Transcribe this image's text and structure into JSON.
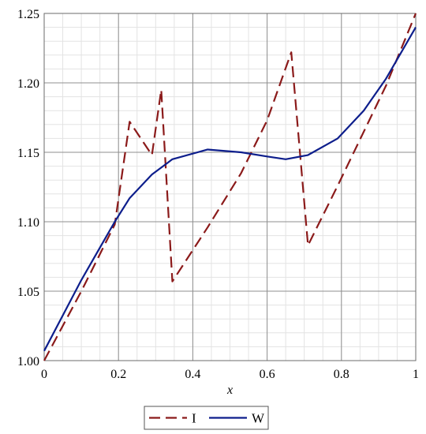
{
  "chart_data": {
    "type": "line",
    "title": "",
    "xlabel": "x",
    "ylabel": "",
    "xlim": [
      0,
      1
    ],
    "ylim": [
      1.0,
      1.25
    ],
    "x_ticks": [
      {
        "value": 0,
        "label": "0"
      },
      {
        "value": 0.2,
        "label": "0.2"
      },
      {
        "value": 0.4,
        "label": "0.4"
      },
      {
        "value": 0.6,
        "label": "0.6"
      },
      {
        "value": 0.8,
        "label": "0.8"
      },
      {
        "value": 1,
        "label": "1"
      }
    ],
    "y_ticks": [
      {
        "value": 1.0,
        "label": "1.00"
      },
      {
        "value": 1.05,
        "label": "1.05"
      },
      {
        "value": 1.1,
        "label": "1.10"
      },
      {
        "value": 1.15,
        "label": "1.15"
      },
      {
        "value": 1.2,
        "label": "1.20"
      },
      {
        "value": 1.25,
        "label": "1.25"
      }
    ],
    "minor_x_step": 0.05,
    "minor_y_step": 0.01,
    "grid": true,
    "legend_position": "bottom-center",
    "series": [
      {
        "name": "I",
        "color": "#8b1a1a",
        "dash": "dashed",
        "points": [
          [
            0,
            1.0
          ],
          [
            0.1,
            1.05
          ],
          [
            0.19,
            1.098
          ],
          [
            0.23,
            1.172
          ],
          [
            0.29,
            1.148
          ],
          [
            0.315,
            1.195
          ],
          [
            0.345,
            1.057
          ],
          [
            0.44,
            1.096
          ],
          [
            0.53,
            1.135
          ],
          [
            0.6,
            1.173
          ],
          [
            0.665,
            1.222
          ],
          [
            0.71,
            1.083
          ],
          [
            0.79,
            1.126
          ],
          [
            0.92,
            1.198
          ],
          [
            1.0,
            1.25
          ]
        ]
      },
      {
        "name": "W",
        "color": "#0d1e8c",
        "dash": "solid",
        "points": [
          [
            0,
            1.007
          ],
          [
            0.1,
            1.058
          ],
          [
            0.19,
            1.1
          ],
          [
            0.23,
            1.117
          ],
          [
            0.29,
            1.134
          ],
          [
            0.33,
            1.142
          ],
          [
            0.345,
            1.145
          ],
          [
            0.44,
            1.152
          ],
          [
            0.53,
            1.15
          ],
          [
            0.6,
            1.147
          ],
          [
            0.65,
            1.145
          ],
          [
            0.71,
            1.148
          ],
          [
            0.79,
            1.16
          ],
          [
            0.86,
            1.18
          ],
          [
            0.92,
            1.203
          ],
          [
            1.0,
            1.24
          ]
        ]
      }
    ]
  }
}
